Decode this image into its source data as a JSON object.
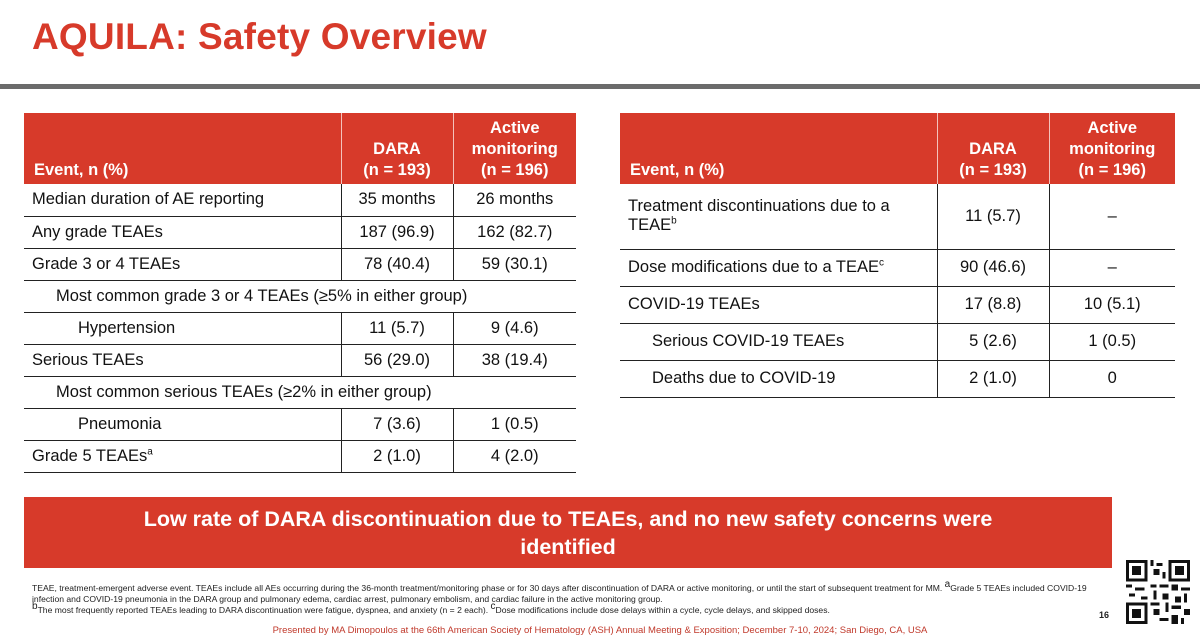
{
  "slide": {
    "title": "AQUILA: Safety Overview",
    "page_number": "16",
    "presenter_line": "Presented by MA Dimopoulos at the 66th American Society of Hematology (ASH) Annual Meeting & Exposition; December 7-10, 2024; San Diego, CA, USA"
  },
  "colors": {
    "accent": "#d73a2a",
    "rule": "#6b6b6b"
  },
  "table_left": {
    "headers": {
      "event": "Event, n (%)",
      "dara_1": "DARA",
      "dara_2": "(n = 193)",
      "am_1": "Active",
      "am_2": "monitoring",
      "am_3": "(n = 196)"
    },
    "rows": [
      {
        "label": "Median duration of AE reporting",
        "sup": "",
        "dara": "35 months",
        "am": "26 months",
        "indent": 0
      },
      {
        "label": "Any grade TEAEs",
        "sup": "",
        "dara": "187 (96.9)",
        "am": "162 (82.7)",
        "indent": 0
      },
      {
        "label": "Grade 3 or 4 TEAEs",
        "sup": "",
        "dara": "78 (40.4)",
        "am": "59 (30.1)",
        "indent": 0
      },
      {
        "label": "Most common grade 3 or 4 TEAEs (≥5% in either group)",
        "sup": "",
        "dara": "",
        "am": "",
        "indent": 1,
        "span": true
      },
      {
        "label": "Hypertension",
        "sup": "",
        "dara": "11 (5.7)",
        "am": "9 (4.6)",
        "indent": 2
      },
      {
        "label": "Serious TEAEs",
        "sup": "",
        "dara": "56 (29.0)",
        "am": "38 (19.4)",
        "indent": 0
      },
      {
        "label": "Most common serious TEAEs (≥2% in either group)",
        "sup": "",
        "dara": "",
        "am": "",
        "indent": 1,
        "span": true
      },
      {
        "label": "Pneumonia",
        "sup": "",
        "dara": "7 (3.6)",
        "am": "1 (0.5)",
        "indent": 2
      },
      {
        "label": "Grade 5 TEAEs",
        "sup": "a",
        "dara": "2 (1.0)",
        "am": "4 (2.0)",
        "indent": 0
      }
    ]
  },
  "table_right": {
    "headers": {
      "event": "Event, n (%)",
      "dara_1": "DARA",
      "dara_2": "(n = 193)",
      "am_1": "Active",
      "am_2": "monitoring",
      "am_3": "(n = 196)"
    },
    "rows": [
      {
        "label": "Treatment discontinuations due to a TEAE",
        "sup": "b",
        "dara": "11 (5.7)",
        "am": "–",
        "indent": 0
      },
      {
        "label": "Dose modifications due to a TEAE",
        "sup": "c",
        "dara": "90 (46.6)",
        "am": "–",
        "indent": 0
      },
      {
        "label": "COVID-19 TEAEs",
        "sup": "",
        "dara": "17 (8.8)",
        "am": "10 (5.1)",
        "indent": 0
      },
      {
        "label": "Serious COVID-19 TEAEs",
        "sup": "",
        "dara": "5 (2.6)",
        "am": "1 (0.5)",
        "indent": 1
      },
      {
        "label": "Deaths due to COVID-19",
        "sup": "",
        "dara": "2 (1.0)",
        "am": "0",
        "indent": 1
      }
    ]
  },
  "banner": {
    "text": "Low rate of DARA discontinuation due to TEAEs, and no new safety concerns were identified"
  },
  "footnotes": {
    "line1": "TEAE, treatment-emergent adverse event. TEAEs include all AEs occurring during the 36-month treatment/monitoring phase or for 30 days after discontinuation of DARA or active monitoring, or until the start of subsequent treatment for MM. ",
    "sup_a": "a",
    "line1b": "Grade 5 TEAEs included COVID-19 infection and COVID-19 pneumonia in the DARA group and pulmonary edema, cardiac arrest, pulmonary embolism, and cardiac failure in the active monitoring group.",
    "sup_b": "b",
    "line2": "The most frequently reported TEAEs leading to DARA discontinuation were fatigue, dyspnea, and anxiety (n = 2 each). ",
    "sup_c": "c",
    "line2b": "Dose modifications include dose delays within a cycle, cycle delays, and skipped doses."
  }
}
